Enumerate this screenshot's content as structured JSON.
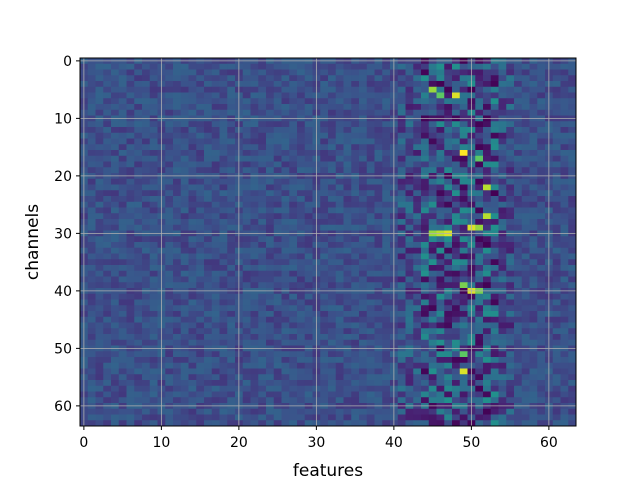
{
  "chart_data": {
    "type": "heatmap",
    "title": "",
    "xlabel": "features",
    "ylabel": "channels",
    "colormap": "viridis",
    "grid": true,
    "grid_color": "#b0b0b0",
    "xlim": [
      -0.5,
      63.5
    ],
    "ylim": [
      63.5,
      -0.5
    ],
    "x_ticks": [
      0,
      10,
      20,
      30,
      40,
      50,
      60
    ],
    "y_ticks": [
      0,
      10,
      20,
      30,
      40,
      50,
      60
    ],
    "x_tick_labels": [
      "0",
      "10",
      "20",
      "30",
      "40",
      "50",
      "60"
    ],
    "y_tick_labels": [
      "0",
      "10",
      "20",
      "30",
      "40",
      "50",
      "60"
    ],
    "n_rows": 64,
    "n_cols": 64,
    "baseline_value": 0.25,
    "hot_cells": [
      {
        "row": 5,
        "col": 45,
        "value": 0.85
      },
      {
        "row": 6,
        "col": 46,
        "value": 0.75
      },
      {
        "row": 6,
        "col": 48,
        "value": 0.95
      },
      {
        "row": 16,
        "col": 49,
        "value": 1.0
      },
      {
        "row": 17,
        "col": 51,
        "value": 0.75
      },
      {
        "row": 22,
        "col": 52,
        "value": 0.9
      },
      {
        "row": 27,
        "col": 52,
        "value": 0.9
      },
      {
        "row": 29,
        "col": 50,
        "value": 0.95
      },
      {
        "row": 29,
        "col": 51,
        "value": 0.85
      },
      {
        "row": 30,
        "col": 45,
        "value": 0.85
      },
      {
        "row": 30,
        "col": 46,
        "value": 0.9
      },
      {
        "row": 30,
        "col": 47,
        "value": 0.95
      },
      {
        "row": 39,
        "col": 49,
        "value": 0.8
      },
      {
        "row": 40,
        "col": 50,
        "value": 0.95
      },
      {
        "row": 40,
        "col": 51,
        "value": 0.8
      },
      {
        "row": 51,
        "col": 49,
        "value": 0.75
      },
      {
        "row": 54,
        "col": 49,
        "value": 0.95
      }
    ],
    "dark_cells": [
      {
        "row": 7,
        "col": 50,
        "value": 0.05
      },
      {
        "row": 52,
        "col": 48,
        "value": 0.02
      },
      {
        "row": 52,
        "col": 49,
        "value": 0.02
      },
      {
        "row": 44,
        "col": 47,
        "value": 0.05
      },
      {
        "row": 24,
        "col": 49,
        "value": 0.05
      }
    ]
  }
}
